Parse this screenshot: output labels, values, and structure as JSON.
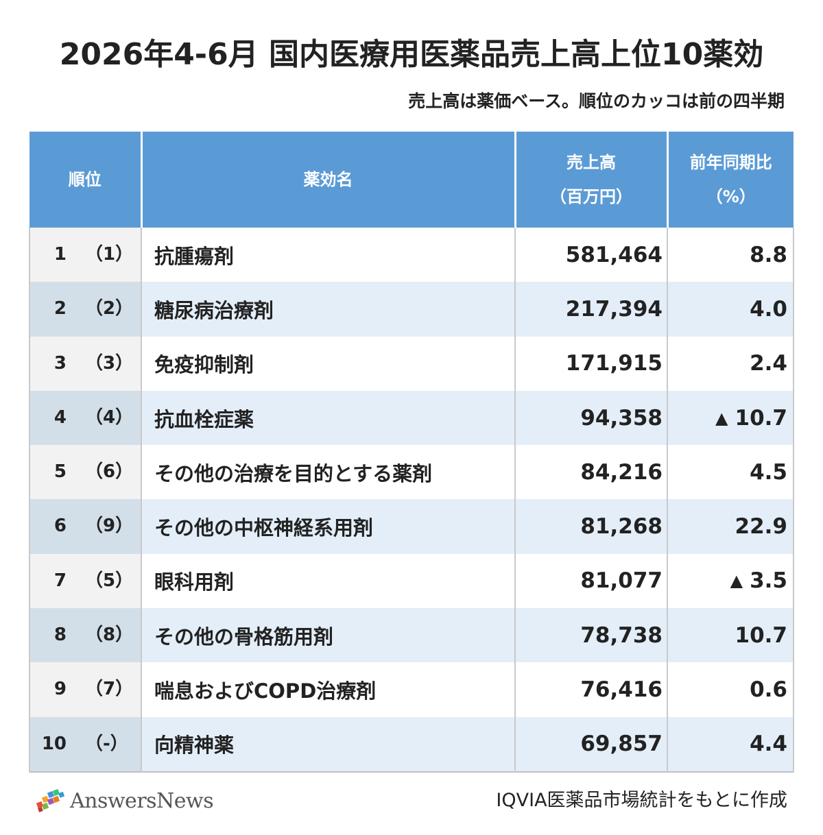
{
  "chart_data": {
    "type": "table",
    "title": "2026年4-6月 国内医療用医薬品売上高上位10薬効",
    "subtitle": "売上高は薬価ベース。順位のカッコは前の四半期",
    "columns": {
      "rank": "順位",
      "name": "薬効名",
      "sales_line1": "売上高",
      "sales_line2": "（百万円）",
      "yoy_line1": "前年同期比",
      "yoy_line2": "（%）"
    },
    "rows": [
      {
        "rank": "1",
        "prev": "（1）",
        "name": "抗腫瘍剤",
        "sales": "581,464",
        "yoy_mark": "",
        "yoy": "8.8"
      },
      {
        "rank": "2",
        "prev": "（2）",
        "name": "糖尿病治療剤",
        "sales": "217,394",
        "yoy_mark": "",
        "yoy": "4.0"
      },
      {
        "rank": "3",
        "prev": "（3）",
        "name": "免疫抑制剤",
        "sales": "171,915",
        "yoy_mark": "",
        "yoy": "2.4"
      },
      {
        "rank": "4",
        "prev": "（4）",
        "name": "抗血栓症薬",
        "sales": "94,358",
        "yoy_mark": "▲",
        "yoy": "10.7"
      },
      {
        "rank": "5",
        "prev": "（6）",
        "name": "その他の治療を目的とする薬剤",
        "sales": "84,216",
        "yoy_mark": "",
        "yoy": "4.5"
      },
      {
        "rank": "6",
        "prev": "（9）",
        "name": "その他の中枢神経系用剤",
        "sales": "81,268",
        "yoy_mark": "",
        "yoy": "22.9"
      },
      {
        "rank": "7",
        "prev": "（5）",
        "name": "眼科用剤",
        "sales": "81,077",
        "yoy_mark": "▲",
        "yoy": "3.5"
      },
      {
        "rank": "8",
        "prev": "（8）",
        "name": "その他の骨格筋用剤",
        "sales": "78,738",
        "yoy_mark": "",
        "yoy": "10.7"
      },
      {
        "rank": "9",
        "prev": "（7）",
        "name": "喘息およびCOPD治療剤",
        "sales": "76,416",
        "yoy_mark": "",
        "yoy": "0.6"
      },
      {
        "rank": "10",
        "prev": "（-）",
        "name": "向精神薬",
        "sales": "69,857",
        "yoy_mark": "",
        "yoy": "4.4"
      }
    ]
  },
  "footer": {
    "brand": "AnswersNews",
    "source": "IQVIA医薬品市場統計をもとに作成"
  },
  "colors": {
    "header_bg": "#5b9bd5",
    "row_alt_bg": "#e4eef8",
    "rank_bg": "#f2f2f2",
    "rank_alt_bg": "#d3dfe8"
  }
}
